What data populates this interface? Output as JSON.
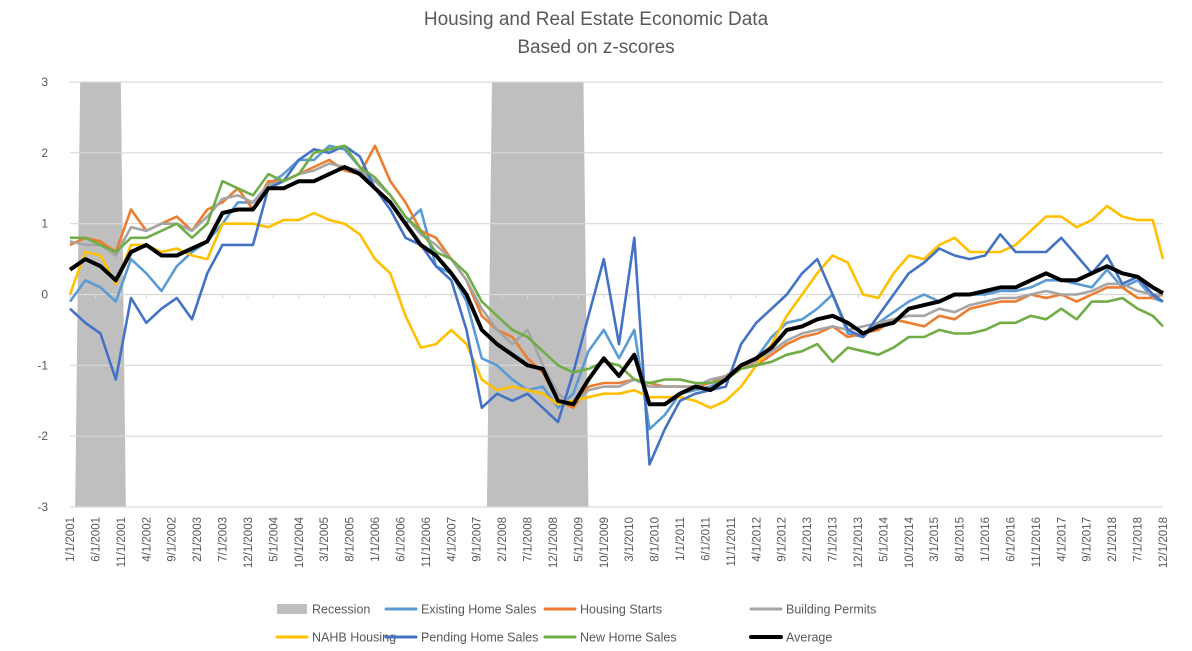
{
  "chart_data": {
    "type": "line",
    "title": "Housing and Real Estate Economic Data",
    "subtitle": "Based on z-scores",
    "xlabel": "",
    "ylabel": "",
    "ylim": [
      -3,
      3
    ],
    "yticks": [
      "3",
      "2",
      "1",
      "0",
      "-1",
      "-2",
      "-3"
    ],
    "grid": true,
    "legend_position": "bottom",
    "xtick_labels": [
      "1/1/2001",
      "6/1/2001",
      "11/1/2001",
      "4/1/2002",
      "9/1/2002",
      "2/1/2003",
      "7/1/2003",
      "12/1/2003",
      "5/1/2004",
      "10/1/2004",
      "3/1/2005",
      "8/1/2005",
      "1/1/2006",
      "6/1/2006",
      "11/1/2006",
      "4/1/2007",
      "9/1/2007",
      "2/1/2008",
      "7/1/2008",
      "12/1/2008",
      "5/1/2009",
      "10/1/2009",
      "3/1/2010",
      "8/1/2010",
      "1/1/2011",
      "6/1/2011",
      "11/1/2011",
      "4/1/2012",
      "9/1/2012",
      "2/1/2013",
      "7/1/2013",
      "12/1/2013",
      "5/1/2014",
      "10/1/2014",
      "3/1/2015",
      "8/1/2015",
      "1/1/2016",
      "6/1/2016",
      "11/1/2016",
      "4/1/2017",
      "9/1/2017",
      "2/1/2018",
      "7/1/2018",
      "12/1/2018"
    ],
    "recessions": [
      {
        "start": "3/1/2001",
        "end": "11/1/2001"
      },
      {
        "start": "12/1/2007",
        "end": "6/1/2009"
      }
    ],
    "x": [
      "1/1/2001",
      "4/1/2001",
      "7/1/2001",
      "10/1/2001",
      "1/1/2002",
      "4/1/2002",
      "7/1/2002",
      "10/1/2002",
      "1/1/2003",
      "4/1/2003",
      "7/1/2003",
      "10/1/2003",
      "1/1/2004",
      "4/1/2004",
      "7/1/2004",
      "10/1/2004",
      "1/1/2005",
      "4/1/2005",
      "7/1/2005",
      "10/1/2005",
      "1/1/2006",
      "4/1/2006",
      "7/1/2006",
      "10/1/2006",
      "1/1/2007",
      "4/1/2007",
      "7/1/2007",
      "10/1/2007",
      "1/1/2008",
      "4/1/2008",
      "7/1/2008",
      "10/1/2008",
      "1/1/2009",
      "4/1/2009",
      "7/1/2009",
      "10/1/2009",
      "1/1/2010",
      "4/1/2010",
      "7/1/2010",
      "10/1/2010",
      "1/1/2011",
      "4/1/2011",
      "7/1/2011",
      "10/1/2011",
      "1/1/2012",
      "4/1/2012",
      "7/1/2012",
      "10/1/2012",
      "1/1/2013",
      "4/1/2013",
      "7/1/2013",
      "10/1/2013",
      "1/1/2014",
      "4/1/2014",
      "7/1/2014",
      "10/1/2014",
      "1/1/2015",
      "4/1/2015",
      "7/1/2015",
      "10/1/2015",
      "1/1/2016",
      "4/1/2016",
      "7/1/2016",
      "10/1/2016",
      "1/1/2017",
      "4/1/2017",
      "7/1/2017",
      "10/1/2017",
      "1/1/2018",
      "4/1/2018",
      "7/1/2018",
      "10/1/2018",
      "12/1/2018"
    ],
    "series": [
      {
        "name": "Existing Home Sales",
        "color": "#5B9BD5",
        "values": [
          -0.1,
          0.2,
          0.1,
          -0.1,
          0.5,
          0.3,
          0.05,
          0.4,
          0.6,
          0.75,
          1.0,
          1.3,
          1.3,
          1.55,
          1.7,
          1.9,
          1.9,
          2.1,
          2.05,
          1.8,
          1.5,
          1.3,
          1.0,
          1.2,
          0.4,
          0.3,
          -0.1,
          -0.9,
          -1.0,
          -1.2,
          -1.35,
          -1.3,
          -1.6,
          -1.4,
          -0.8,
          -0.5,
          -0.9,
          -0.5,
          -1.9,
          -1.7,
          -1.4,
          -1.35,
          -1.3,
          -1.2,
          -1.0,
          -0.9,
          -0.6,
          -0.4,
          -0.35,
          -0.2,
          0.0,
          -0.55,
          -0.6,
          -0.4,
          -0.25,
          -0.1,
          0.0,
          -0.1,
          0.0,
          0.0,
          0.0,
          0.05,
          0.05,
          0.1,
          0.2,
          0.2,
          0.15,
          0.1,
          0.35,
          0.1,
          0.2,
          -0.05,
          -0.1
        ]
      },
      {
        "name": "Housing Starts",
        "color": "#ED7D31",
        "values": [
          0.7,
          0.8,
          0.75,
          0.6,
          1.2,
          0.9,
          1.0,
          1.1,
          0.9,
          1.2,
          1.3,
          1.5,
          1.2,
          1.6,
          1.6,
          1.7,
          1.8,
          1.9,
          1.75,
          1.7,
          2.1,
          1.6,
          1.3,
          0.9,
          0.8,
          0.5,
          0.2,
          -0.3,
          -0.5,
          -0.6,
          -0.9,
          -1.1,
          -1.5,
          -1.6,
          -1.3,
          -1.25,
          -1.25,
          -1.2,
          -1.25,
          -1.3,
          -1.3,
          -1.3,
          -1.25,
          -1.15,
          -1.0,
          -1.0,
          -0.85,
          -0.7,
          -0.6,
          -0.55,
          -0.45,
          -0.6,
          -0.55,
          -0.5,
          -0.35,
          -0.4,
          -0.45,
          -0.3,
          -0.35,
          -0.2,
          -0.15,
          -0.1,
          -0.1,
          0.0,
          -0.05,
          0.0,
          -0.1,
          0.0,
          0.1,
          0.1,
          -0.05,
          -0.05,
          0.0
        ]
      },
      {
        "name": "Building Permits",
        "color": "#A5A5A5",
        "values": [
          0.75,
          0.7,
          0.7,
          0.55,
          0.95,
          0.9,
          1.0,
          1.0,
          0.9,
          1.1,
          1.35,
          1.4,
          1.3,
          1.55,
          1.6,
          1.7,
          1.75,
          1.85,
          1.8,
          1.75,
          1.6,
          1.4,
          1.1,
          0.85,
          0.7,
          0.5,
          0.2,
          -0.2,
          -0.5,
          -0.7,
          -0.5,
          -1.0,
          -1.4,
          -1.55,
          -1.35,
          -1.3,
          -1.3,
          -1.2,
          -1.3,
          -1.3,
          -1.3,
          -1.3,
          -1.2,
          -1.15,
          -1.0,
          -0.95,
          -0.8,
          -0.65,
          -0.55,
          -0.5,
          -0.45,
          -0.5,
          -0.45,
          -0.4,
          -0.35,
          -0.3,
          -0.3,
          -0.2,
          -0.25,
          -0.15,
          -0.1,
          -0.05,
          -0.05,
          0.0,
          0.05,
          0.0,
          0.0,
          0.05,
          0.15,
          0.15,
          0.05,
          0.0,
          0.0
        ]
      },
      {
        "name": "NAHB Housing",
        "color": "#FFC000",
        "values": [
          0.0,
          0.6,
          0.55,
          0.15,
          0.7,
          0.7,
          0.6,
          0.65,
          0.55,
          0.5,
          1.0,
          1.0,
          1.0,
          0.95,
          1.05,
          1.05,
          1.15,
          1.05,
          1.0,
          0.85,
          0.5,
          0.3,
          -0.3,
          -0.75,
          -0.7,
          -0.5,
          -0.7,
          -1.2,
          -1.35,
          -1.3,
          -1.35,
          -1.4,
          -1.55,
          -1.5,
          -1.45,
          -1.4,
          -1.4,
          -1.35,
          -1.45,
          -1.45,
          -1.45,
          -1.5,
          -1.6,
          -1.5,
          -1.3,
          -1.0,
          -0.7,
          -0.3,
          0.0,
          0.3,
          0.55,
          0.45,
          0.0,
          -0.05,
          0.3,
          0.55,
          0.5,
          0.7,
          0.8,
          0.6,
          0.6,
          0.6,
          0.7,
          0.9,
          1.1,
          1.1,
          0.95,
          1.05,
          1.25,
          1.1,
          1.05,
          1.05,
          0.5
        ]
      },
      {
        "name": "Pending Home Sales",
        "color": "#4472C4",
        "values": [
          -0.2,
          -0.4,
          -0.55,
          -1.2,
          -0.05,
          -0.4,
          -0.2,
          -0.05,
          -0.35,
          0.3,
          0.7,
          0.7,
          0.7,
          1.5,
          1.6,
          1.9,
          2.05,
          2.0,
          2.1,
          1.95,
          1.5,
          1.2,
          0.8,
          0.7,
          0.4,
          0.2,
          -0.5,
          -1.6,
          -1.4,
          -1.5,
          -1.4,
          -1.6,
          -1.8,
          -1.1,
          -0.3,
          0.5,
          -0.7,
          0.8,
          -2.4,
          -1.9,
          -1.5,
          -1.4,
          -1.35,
          -1.3,
          -0.7,
          -0.4,
          -0.2,
          0.0,
          0.3,
          0.5,
          0.0,
          -0.5,
          -0.6,
          -0.3,
          0.0,
          0.3,
          0.45,
          0.65,
          0.55,
          0.5,
          0.55,
          0.85,
          0.6,
          0.6,
          0.6,
          0.8,
          0.55,
          0.3,
          0.55,
          0.15,
          0.25,
          0.0,
          -0.1
        ]
      },
      {
        "name": "New Home Sales",
        "color": "#70AD47",
        "values": [
          0.8,
          0.8,
          0.7,
          0.6,
          0.8,
          0.8,
          0.9,
          1.0,
          0.8,
          1.0,
          1.6,
          1.5,
          1.4,
          1.7,
          1.6,
          1.7,
          2.0,
          2.05,
          2.1,
          1.8,
          1.65,
          1.4,
          1.1,
          0.9,
          0.6,
          0.5,
          0.3,
          -0.1,
          -0.3,
          -0.5,
          -0.6,
          -0.8,
          -1.0,
          -1.1,
          -1.05,
          -0.95,
          -1.0,
          -1.2,
          -1.25,
          -1.2,
          -1.2,
          -1.25,
          -1.25,
          -1.2,
          -1.05,
          -1.0,
          -0.95,
          -0.85,
          -0.8,
          -0.7,
          -0.95,
          -0.75,
          -0.8,
          -0.85,
          -0.75,
          -0.6,
          -0.6,
          -0.5,
          -0.55,
          -0.55,
          -0.5,
          -0.4,
          -0.4,
          -0.3,
          -0.35,
          -0.2,
          -0.35,
          -0.1,
          -0.1,
          -0.05,
          -0.2,
          -0.3,
          -0.45
        ]
      },
      {
        "name": "Average",
        "color": "#000000",
        "values": [
          0.35,
          0.5,
          0.4,
          0.2,
          0.6,
          0.7,
          0.55,
          0.55,
          0.65,
          0.75,
          1.15,
          1.2,
          1.2,
          1.5,
          1.5,
          1.6,
          1.6,
          1.7,
          1.8,
          1.7,
          1.5,
          1.3,
          1.0,
          0.7,
          0.55,
          0.3,
          0.0,
          -0.5,
          -0.7,
          -0.85,
          -1.0,
          -1.05,
          -1.5,
          -1.55,
          -1.2,
          -0.9,
          -1.15,
          -0.85,
          -1.55,
          -1.55,
          -1.4,
          -1.3,
          -1.35,
          -1.2,
          -1.0,
          -0.9,
          -0.75,
          -0.5,
          -0.45,
          -0.35,
          -0.3,
          -0.4,
          -0.55,
          -0.45,
          -0.4,
          -0.2,
          -0.15,
          -0.1,
          0.0,
          0.0,
          0.05,
          0.1,
          0.1,
          0.2,
          0.3,
          0.2,
          0.2,
          0.3,
          0.4,
          0.3,
          0.25,
          0.1,
          0.02
        ]
      }
    ],
    "legend": [
      {
        "label": "Recession",
        "kind": "area",
        "color": "#BFBFBF"
      },
      {
        "label": "Existing Home Sales",
        "kind": "line",
        "color": "#5B9BD5"
      },
      {
        "label": "Housing Starts",
        "kind": "line",
        "color": "#ED7D31"
      },
      {
        "label": "Building Permits",
        "kind": "line",
        "color": "#A5A5A5"
      },
      {
        "label": "NAHB Housing",
        "kind": "line",
        "color": "#FFC000"
      },
      {
        "label": "Pending Home Sales",
        "kind": "line",
        "color": "#4472C4"
      },
      {
        "label": "New Home Sales",
        "kind": "line",
        "color": "#70AD47"
      },
      {
        "label": "Average",
        "kind": "line",
        "color": "#000000"
      }
    ]
  }
}
